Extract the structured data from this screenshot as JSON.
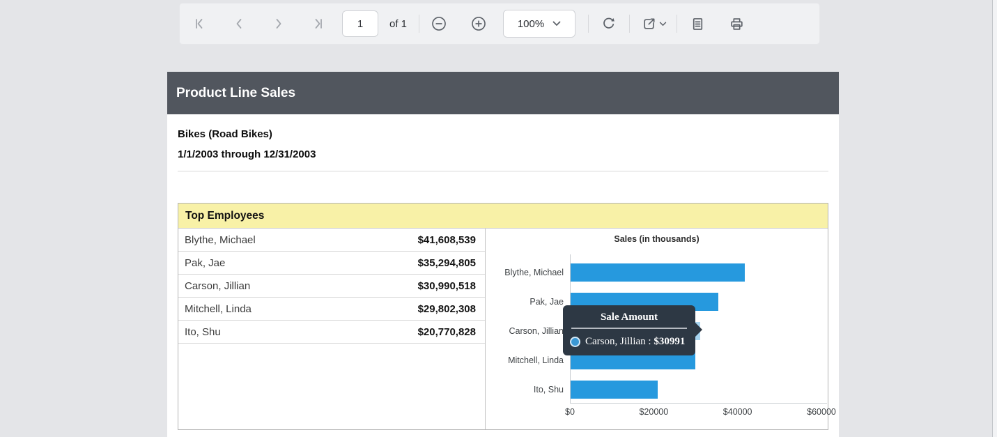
{
  "toolbar": {
    "page_input_value": "1",
    "pages_total_label": "of 1",
    "zoom_select_value": "100%",
    "icons": [
      "first-page-icon",
      "previous-page-icon",
      "next-page-icon",
      "last-page-icon",
      "zoom-out-icon",
      "zoom-in-icon",
      "chevron-down-icon",
      "refresh-icon",
      "export-icon",
      "document-icon",
      "print-icon"
    ]
  },
  "report": {
    "title": "Product Line Sales",
    "product_line": "Bikes (Road Bikes)",
    "date_range": "1/1/2003 through 12/31/2003"
  },
  "top_employees": {
    "header": "Top Employees",
    "rows": [
      {
        "name": "Blythe, Michael",
        "amount": "$41,608,539"
      },
      {
        "name": "Pak, Jae",
        "amount": "$35,294,805"
      },
      {
        "name": "Carson, Jillian",
        "amount": "$30,990,518"
      },
      {
        "name": "Mitchell, Linda",
        "amount": "$29,802,308"
      },
      {
        "name": "Ito, Shu",
        "amount": "$20,770,828"
      }
    ]
  },
  "chart_data": {
    "type": "bar",
    "orientation": "horizontal",
    "title": "Sales (in thousands)",
    "categories": [
      "Blythe, Michael",
      "Pak, Jae",
      "Carson, Jillian",
      "Mitchell, Linda",
      "Ito, Shu"
    ],
    "values": [
      41609,
      35295,
      30991,
      29802,
      20771
    ],
    "xlim": [
      0,
      61000
    ],
    "xticks": [
      {
        "label": "$0",
        "value": 0
      },
      {
        "label": "$20000",
        "value": 20000
      },
      {
        "label": "$40000",
        "value": 40000
      },
      {
        "label": "$60000",
        "value": 60000
      }
    ],
    "grid": false,
    "legend": "none",
    "bar_color": "#2699de",
    "highlight_color": "#a6d4f0",
    "highlighted_index": 2
  },
  "tooltip": {
    "title": "Sale Amount",
    "series_label": "Carson, Jillian :",
    "value": "$30991",
    "marker_color": "#3a97d3"
  },
  "colors": {
    "page_background": "#e4e5e8",
    "toolbar_background": "#f0f1f3",
    "title_bar": "#51565e",
    "panel_header_bg": "#f8f1a7",
    "bar_blue": "#2699de",
    "bar_highlight": "#a6d4f0",
    "tooltip_bg": "#2d3844"
  }
}
